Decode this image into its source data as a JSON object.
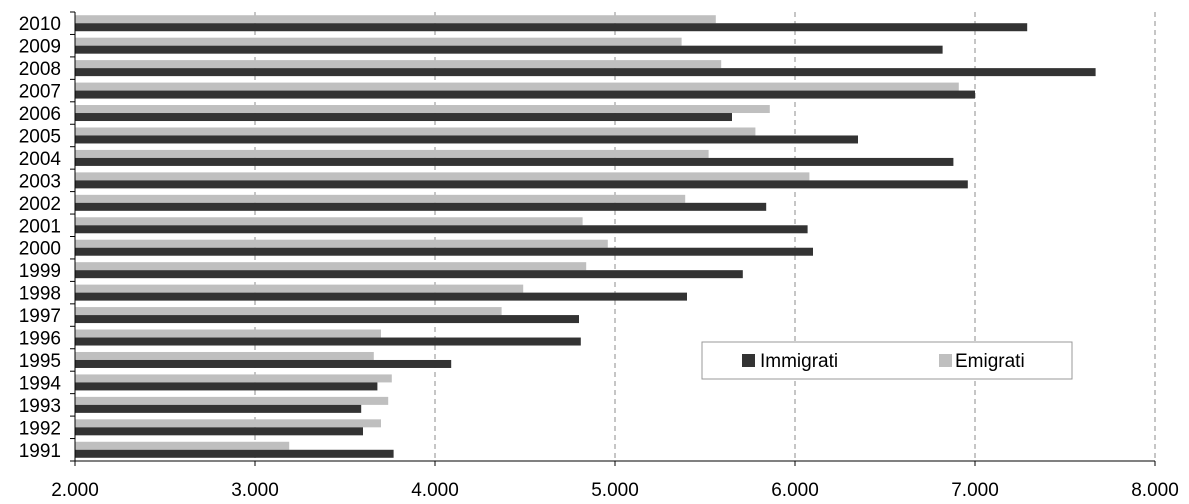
{
  "chart_data": {
    "type": "bar",
    "orientation": "horizontal",
    "categories": [
      "1991",
      "1992",
      "1993",
      "1994",
      "1995",
      "1996",
      "1997",
      "1998",
      "1999",
      "2000",
      "2001",
      "2002",
      "2003",
      "2004",
      "2005",
      "2006",
      "2007",
      "2008",
      "2009",
      "2010"
    ],
    "series": [
      {
        "name": "Immigrati",
        "color": "#333333",
        "values": [
          3770,
          3600,
          3590,
          3680,
          4090,
          4810,
          4800,
          5400,
          5710,
          6100,
          6070,
          5840,
          6960,
          6880,
          6350,
          5650,
          7000,
          7670,
          6820,
          7290
        ]
      },
      {
        "name": "Emigrati",
        "color": "#bfbfbf",
        "values": [
          3190,
          3700,
          3740,
          3760,
          3660,
          3700,
          4370,
          4490,
          4840,
          4960,
          4820,
          5390,
          6080,
          5520,
          5780,
          5860,
          6910,
          5590,
          5370,
          5560
        ]
      }
    ],
    "xlim": [
      2000,
      8000
    ],
    "x_ticks": [
      2000,
      3000,
      4000,
      5000,
      6000,
      7000,
      8000
    ],
    "x_tick_labels": [
      "2.000",
      "3.000",
      "4.000",
      "5.000",
      "6.000",
      "7.000",
      "8.000"
    ],
    "grid": "vertical dashed",
    "legend_position": "bottom-right inside",
    "title": "",
    "xlabel": "",
    "ylabel": ""
  }
}
